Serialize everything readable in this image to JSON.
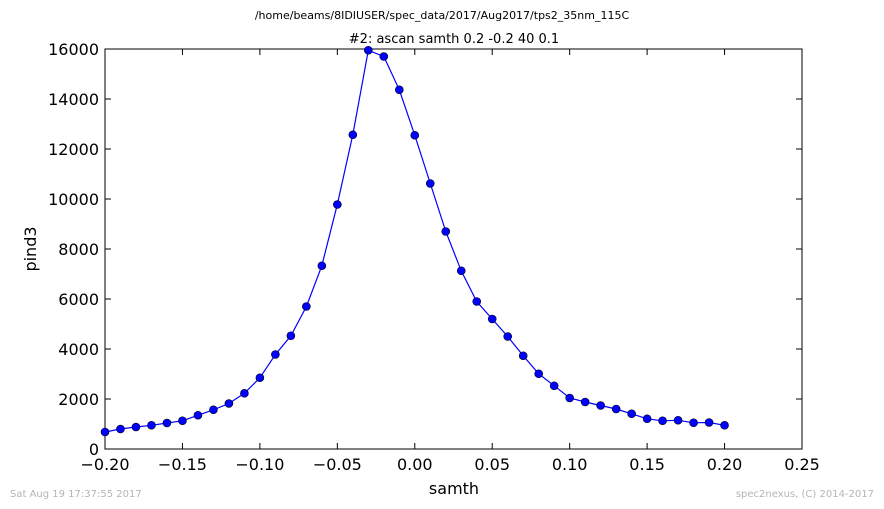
{
  "header": {
    "path": "/home/beams/8IDIUSER/spec_data/2017/Aug2017/tps2_35nm_115C"
  },
  "footer": {
    "timestamp": "Sat Aug 19 17:37:55 2017",
    "credit": "spec2nexus, (C) 2014-2017"
  },
  "colors": {
    "series": "#0000ff"
  },
  "chart_data": {
    "type": "line",
    "title": "#2: ascan  samth 0.2 -0.2  40 0.1",
    "xlabel": "samth",
    "ylabel": "pind3",
    "xlim": [
      -0.2,
      0.25
    ],
    "ylim": [
      0,
      16000
    ],
    "xticks": [
      "−0.20",
      "−0.15",
      "−0.10",
      "−0.05",
      "0.00",
      "0.05",
      "0.10",
      "0.15",
      "0.20",
      "0.25"
    ],
    "yticks": [
      "0",
      "2000",
      "4000",
      "6000",
      "8000",
      "10000",
      "12000",
      "14000",
      "16000"
    ],
    "grid": false,
    "legend": false,
    "markers": "circle",
    "series": [
      {
        "x": [
          -0.2,
          -0.19,
          -0.18,
          -0.17,
          -0.16,
          -0.15,
          -0.14,
          -0.13,
          -0.12,
          -0.11,
          -0.1,
          -0.09,
          -0.08,
          -0.07,
          -0.06,
          -0.05,
          -0.04,
          -0.03,
          -0.02,
          -0.01,
          0.0,
          0.01,
          0.02,
          0.03,
          0.04,
          0.05,
          0.06,
          0.07,
          0.08,
          0.09,
          0.1,
          0.11,
          0.12,
          0.13,
          0.14,
          0.15,
          0.16,
          0.17,
          0.18,
          0.19,
          0.2
        ],
        "y": [
          680,
          800,
          880,
          950,
          1040,
          1130,
          1350,
          1570,
          1820,
          2230,
          2850,
          3780,
          4530,
          5700,
          7330,
          9780,
          12570,
          15950,
          15700,
          14370,
          12550,
          10620,
          8700,
          7130,
          5900,
          5200,
          4500,
          3730,
          3010,
          2530,
          2040,
          1880,
          1740,
          1600,
          1410,
          1210,
          1130,
          1150,
          1050,
          1060,
          950
        ]
      }
    ]
  }
}
